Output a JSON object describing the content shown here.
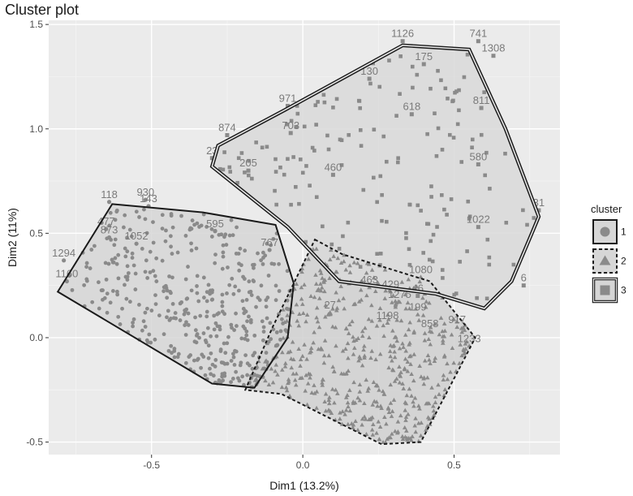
{
  "chart_data": {
    "type": "scatter",
    "title": "Cluster plot",
    "xlabel": "Dim1 (13.2%)",
    "ylabel": "Dim2 (11%)",
    "xlim": [
      -0.84,
      0.85
    ],
    "ylim": [
      -0.56,
      1.52
    ],
    "x_ticks": [
      -0.5,
      0.0,
      0.5
    ],
    "x_tick_labels": [
      "-0.5",
      "0.0",
      "0.5"
    ],
    "y_ticks": [
      -0.5,
      0.0,
      0.5,
      1.0,
      1.5
    ],
    "y_tick_labels": [
      "-0.5",
      "0.0",
      "0.5",
      "1.0",
      "1.5"
    ],
    "grid": true,
    "background": "#ebebeb",
    "legend": {
      "title": "cluster",
      "position": "right",
      "entries": [
        {
          "label": "1",
          "shape": "circle",
          "border": "solid"
        },
        {
          "label": "2",
          "shape": "triangle",
          "border": "dashed"
        },
        {
          "label": "3",
          "shape": "square",
          "border": "double"
        }
      ]
    },
    "series": [
      {
        "name": "1",
        "marker": "circle",
        "hull_style": "solid",
        "hull": [
          [
            -0.63,
            0.64
          ],
          [
            -0.33,
            0.6
          ],
          [
            -0.09,
            0.54
          ],
          [
            -0.03,
            0.26
          ],
          [
            -0.05,
            0.0
          ],
          [
            -0.16,
            -0.24
          ],
          [
            -0.3,
            -0.22
          ],
          [
            -0.81,
            0.22
          ]
        ],
        "labeled_points": [
          {
            "x": -0.64,
            "y": 0.65,
            "label": "118"
          },
          {
            "x": -0.52,
            "y": 0.66,
            "label": "930"
          },
          {
            "x": -0.51,
            "y": 0.63,
            "label": "143"
          },
          {
            "x": -0.65,
            "y": 0.52,
            "label": "477"
          },
          {
            "x": -0.64,
            "y": 0.48,
            "label": "873"
          },
          {
            "x": -0.55,
            "y": 0.45,
            "label": "1052"
          },
          {
            "x": -0.29,
            "y": 0.51,
            "label": "595"
          },
          {
            "x": -0.11,
            "y": 0.42,
            "label": "767"
          },
          {
            "x": -0.79,
            "y": 0.37,
            "label": "1294"
          },
          {
            "x": -0.78,
            "y": 0.27,
            "label": "1160"
          }
        ]
      },
      {
        "name": "2",
        "marker": "triangle",
        "hull_style": "dashed",
        "hull": [
          [
            0.04,
            0.47
          ],
          [
            0.13,
            0.4
          ],
          [
            0.42,
            0.27
          ],
          [
            0.57,
            0.0
          ],
          [
            0.52,
            -0.14
          ],
          [
            0.39,
            -0.5
          ],
          [
            0.26,
            -0.51
          ],
          [
            -0.07,
            -0.27
          ],
          [
            -0.19,
            -0.25
          ],
          [
            -0.1,
            0.05
          ]
        ],
        "labeled_points": [
          {
            "x": 0.22,
            "y": 0.24,
            "label": "463"
          },
          {
            "x": 0.39,
            "y": 0.29,
            "label": "1080"
          },
          {
            "x": 0.29,
            "y": 0.22,
            "label": "429"
          },
          {
            "x": 0.51,
            "y": 0.05,
            "label": "917"
          },
          {
            "x": 0.55,
            "y": -0.04,
            "label": "1233"
          },
          {
            "x": 0.32,
            "y": 0.17,
            "label": "1275"
          },
          {
            "x": 0.09,
            "y": 0.12,
            "label": "27"
          },
          {
            "x": 0.28,
            "y": 0.07,
            "label": "1198"
          },
          {
            "x": 0.42,
            "y": 0.03,
            "label": "858"
          },
          {
            "x": 0.38,
            "y": 0.11,
            "label": "199"
          }
        ]
      },
      {
        "name": "3",
        "marker": "square",
        "hull_style": "double",
        "hull": [
          [
            -0.3,
            0.82
          ],
          [
            -0.28,
            0.92
          ],
          [
            -0.06,
            1.09
          ],
          [
            0.33,
            1.4
          ],
          [
            0.55,
            1.38
          ],
          [
            0.67,
            1.0
          ],
          [
            0.78,
            0.58
          ],
          [
            0.76,
            0.51
          ],
          [
            0.69,
            0.27
          ],
          [
            0.6,
            0.14
          ],
          [
            0.44,
            0.21
          ],
          [
            0.12,
            0.27
          ],
          [
            -0.05,
            0.53
          ]
        ],
        "labeled_points": [
          {
            "x": 0.33,
            "y": 1.42,
            "label": "1126"
          },
          {
            "x": 0.58,
            "y": 1.42,
            "label": "741"
          },
          {
            "x": 0.63,
            "y": 1.35,
            "label": "1308"
          },
          {
            "x": 0.4,
            "y": 1.31,
            "label": "175"
          },
          {
            "x": 0.22,
            "y": 1.24,
            "label": "130"
          },
          {
            "x": -0.05,
            "y": 1.11,
            "label": "971"
          },
          {
            "x": -0.25,
            "y": 0.97,
            "label": "874"
          },
          {
            "x": -0.04,
            "y": 0.98,
            "label": "703"
          },
          {
            "x": 0.36,
            "y": 1.07,
            "label": "618"
          },
          {
            "x": 0.59,
            "y": 1.1,
            "label": "811"
          },
          {
            "x": -0.3,
            "y": 0.86,
            "label": "23"
          },
          {
            "x": -0.18,
            "y": 0.8,
            "label": "205"
          },
          {
            "x": 0.1,
            "y": 0.78,
            "label": "460"
          },
          {
            "x": 0.58,
            "y": 0.83,
            "label": "580"
          },
          {
            "x": 0.78,
            "y": 0.61,
            "label": "31"
          },
          {
            "x": 0.58,
            "y": 0.53,
            "label": "1022"
          },
          {
            "x": 0.38,
            "y": 0.2,
            "label": "46"
          },
          {
            "x": 0.73,
            "y": 0.25,
            "label": "6"
          }
        ]
      }
    ],
    "note_dense_points": "Hundreds of additional overlapping points and labels fill each cluster region."
  }
}
